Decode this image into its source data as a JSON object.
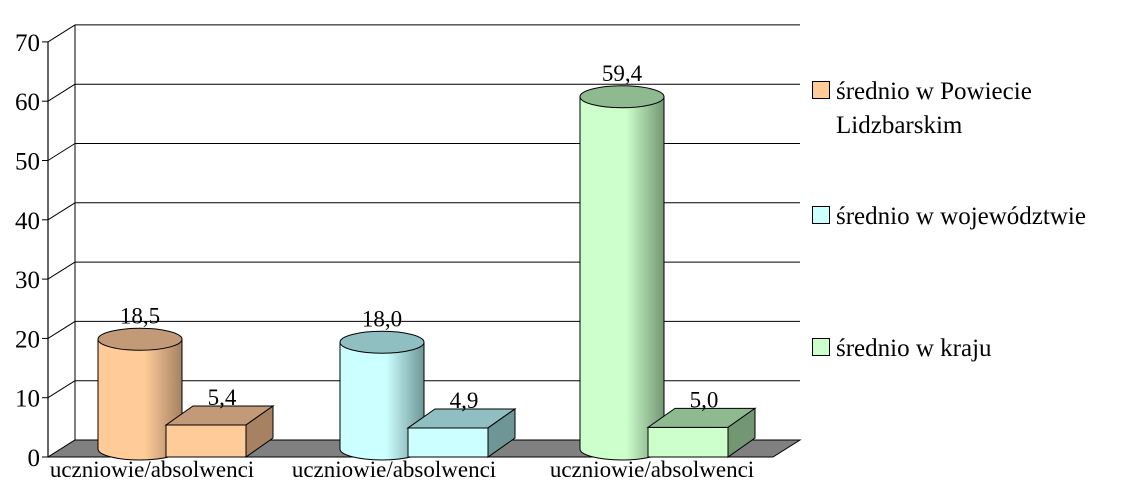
{
  "chart_data": {
    "type": "bar",
    "variant": "3d-cylinder-and-box",
    "groups": [
      {
        "name": "średnio w Powiecie Lidzbarskim",
        "color": "#FFCC99",
        "side": "#A68262",
        "top": "#C29A78",
        "values": [
          18.5,
          5.4
        ],
        "labels": [
          "18,5",
          "5,4"
        ]
      },
      {
        "name": "średnio w województwie",
        "color": "#CCFFFF",
        "side": "#6E9696",
        "top": "#8FBFC0",
        "values": [
          18.0,
          4.9
        ],
        "labels": [
          "18,0",
          "4,9"
        ]
      },
      {
        "name": "średnio w kraju",
        "color": "#CCFFCC",
        "side": "#739673",
        "top": "#8FB98F",
        "values": [
          59.4,
          5.0
        ],
        "labels": [
          "59,4",
          "5,0"
        ]
      }
    ],
    "categories": [
      "uczniowie/absolwenci",
      "uczniowie/absolwenci",
      "uczniowie/absolwenci"
    ],
    "yticks": [
      "0",
      "10",
      "20",
      "30",
      "40",
      "50",
      "60",
      "70"
    ],
    "ylim": [
      0,
      70
    ],
    "grid": true,
    "legend_position": "right"
  },
  "legend": [
    {
      "label_line1": "średnio w Powiecie",
      "label_line2": "Lidzbarskim",
      "color": "#FFCC99"
    },
    {
      "label_line1": "średnio w województwie",
      "label_line2": "",
      "color": "#CCFFFF"
    },
    {
      "label_line1": "średnio w kraju",
      "label_line2": "",
      "color": "#CCFFCC"
    }
  ]
}
